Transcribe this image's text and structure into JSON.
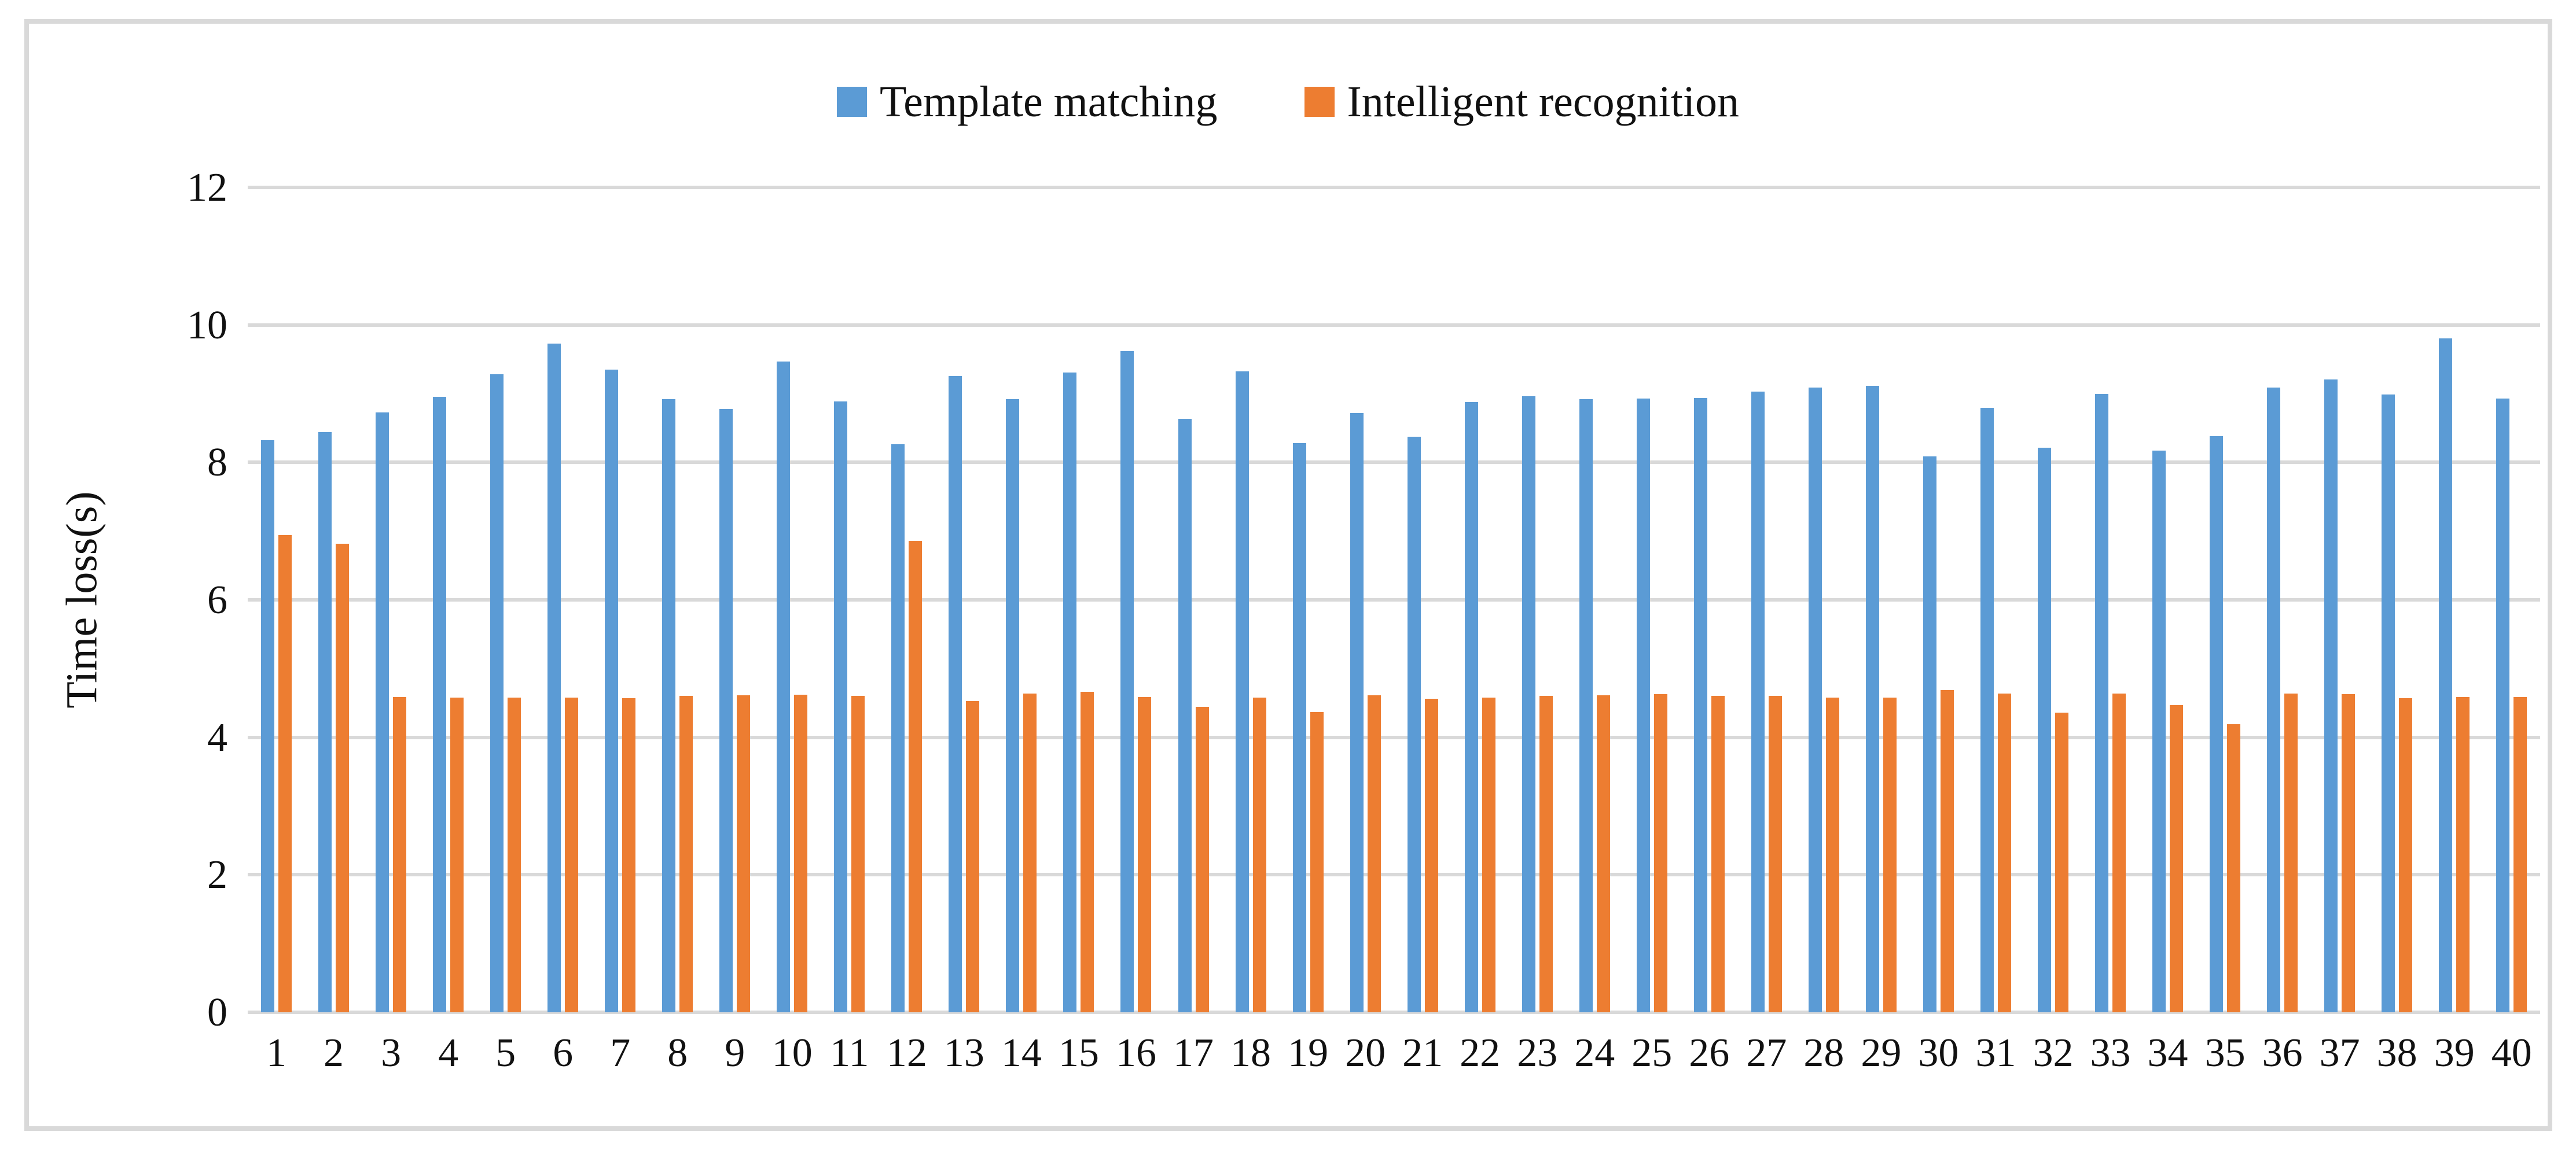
{
  "figure": {
    "background": "#ffffff",
    "frame_color": "#d9d9d9",
    "gridline_color": "#d9d9d9",
    "text_color": "#111111"
  },
  "chart_data": {
    "type": "bar",
    "title": "",
    "xlabel": "",
    "ylabel": "Time loss(s)",
    "ylim": [
      0,
      12
    ],
    "y_ticks": [
      0,
      2,
      4,
      6,
      8,
      10,
      12
    ],
    "grid": true,
    "legend_position": "top-center",
    "categories": [
      "1",
      "2",
      "3",
      "4",
      "5",
      "6",
      "7",
      "8",
      "9",
      "10",
      "11",
      "12",
      "13",
      "14",
      "15",
      "16",
      "17",
      "18",
      "19",
      "20",
      "21",
      "22",
      "23",
      "24",
      "25",
      "26",
      "27",
      "28",
      "29",
      "30",
      "31",
      "32",
      "33",
      "34",
      "35",
      "36",
      "37",
      "38",
      "39",
      "40"
    ],
    "series": [
      {
        "name": "Template matching",
        "color": "#5B9BD5",
        "values": [
          8.32,
          8.44,
          8.73,
          8.95,
          9.28,
          9.73,
          9.35,
          8.92,
          8.78,
          9.47,
          8.89,
          8.26,
          9.26,
          8.92,
          9.31,
          9.62,
          8.63,
          9.32,
          8.28,
          8.72,
          8.37,
          8.88,
          8.96,
          8.92,
          8.93,
          8.94,
          9.03,
          9.09,
          9.11,
          8.09,
          8.79,
          8.21,
          9.0,
          8.17,
          8.38,
          9.09,
          9.21,
          8.99,
          9.8,
          8.93
        ]
      },
      {
        "name": "Intelligent recognition",
        "color": "#ED7D31",
        "values": [
          6.94,
          6.82,
          4.59,
          4.58,
          4.58,
          4.58,
          4.57,
          4.6,
          4.61,
          4.62,
          4.6,
          6.86,
          4.53,
          4.64,
          4.66,
          4.59,
          4.44,
          4.58,
          4.37,
          4.61,
          4.56,
          4.58,
          4.6,
          4.61,
          4.63,
          4.6,
          4.6,
          4.58,
          4.58,
          4.69,
          4.64,
          4.36,
          4.64,
          4.47,
          4.19,
          4.64,
          4.63,
          4.57,
          4.59,
          4.59
        ]
      }
    ]
  }
}
